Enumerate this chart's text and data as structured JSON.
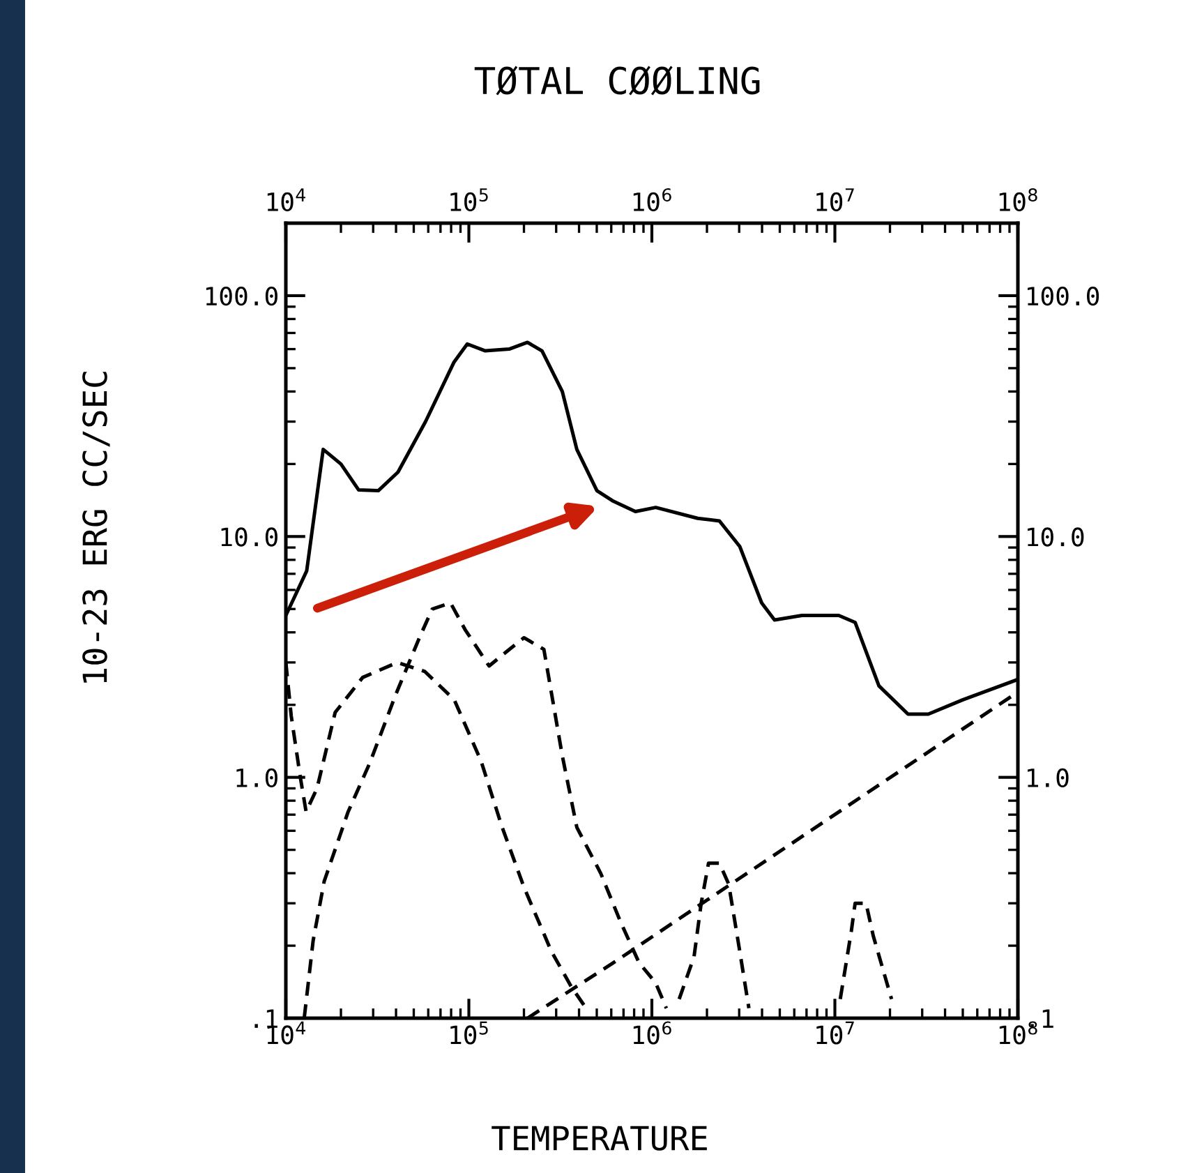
{
  "chart_data": {
    "type": "line",
    "title": "TØTAL CØØLING",
    "xlabel": "TEMPERATURE",
    "ylabel": "10-23 ERG CC/SEC",
    "log": "xy",
    "grid": false,
    "legend": false,
    "marker": "none",
    "xlim": [
      10000,
      100000000
    ],
    "ylim": [
      0.1,
      200
    ],
    "xticks": [
      {
        "value": 10000,
        "label": "10$^{4}$"
      },
      {
        "value": 100000,
        "label": "10$^{5}$"
      },
      {
        "value": 1000000,
        "label": "10$^{6}$"
      },
      {
        "value": 10000000,
        "label": "10$^{7}$"
      },
      {
        "value": 100000000,
        "label": "10$^{8}$"
      }
    ],
    "yticks": [
      {
        "value": 0.1,
        "label": ".1"
      },
      {
        "value": 1,
        "label": "1.0"
      },
      {
        "value": 10,
        "label": "10.0"
      },
      {
        "value": 100,
        "label": "100.0"
      }
    ],
    "series": [
      {
        "color": "#000000",
        "line_style": "solid",
        "x": [
          10000,
          13000,
          16000,
          20000,
          25000,
          32000,
          41000,
          58000,
          83000,
          98000,
          123000,
          166000,
          209000,
          251000,
          324000,
          389000,
          501000,
          617000,
          813000,
          1050000,
          1780000,
          2340000,
          3020000,
          3980000,
          4680000,
          6610000,
          10500000,
          12900000,
          17400000,
          25100000,
          32400000,
          50100000,
          100000000
        ],
        "values": [
          4.7,
          7.2,
          23,
          20,
          15.6,
          15.5,
          18.5,
          30,
          53,
          63,
          59,
          60,
          64,
          59,
          40,
          23,
          15.5,
          14,
          12.7,
          13.2,
          11.9,
          11.6,
          9.1,
          5.3,
          4.5,
          4.7,
          4.7,
          4.4,
          2.4,
          1.83,
          1.83,
          2.1,
          2.55
        ]
      },
      {
        "color": "#000000",
        "line_style": "dashed",
        "x": [
          12600,
          14100,
          16200,
          21900,
          28800,
          39800,
          53700,
          63100,
          79400,
          95500,
          129000,
          151000,
          200000,
          257000,
          324000,
          389000,
          525000,
          676000,
          851000,
          1050000,
          1200000
        ],
        "values": [
          0.1,
          0.21,
          0.37,
          0.72,
          1.15,
          2.2,
          3.8,
          5.0,
          5.3,
          4.1,
          2.9,
          3.2,
          3.8,
          3.4,
          1.23,
          0.62,
          0.4,
          0.25,
          0.17,
          0.14,
          0.11
        ]
      },
      {
        "color": "#000000",
        "line_style": "dashed",
        "x": [
          10000,
          10700,
          12000,
          12900,
          14800,
          18600,
          26300,
          40700,
          57500,
          83200,
          117000,
          151000,
          200000,
          282000,
          363000,
          437000
        ],
        "values": [
          3.0,
          1.8,
          1.0,
          0.72,
          0.9,
          1.86,
          2.6,
          3.0,
          2.75,
          2.1,
          1.16,
          0.63,
          0.35,
          0.19,
          0.135,
          0.11
        ]
      },
      {
        "color": "#000000",
        "line_style": "dashed",
        "x": [
          1410000,
          1700000,
          1860000,
          2040000,
          2340000,
          2630000,
          3020000,
          3390000
        ],
        "values": [
          0.12,
          0.18,
          0.3,
          0.44,
          0.44,
          0.36,
          0.19,
          0.11
        ]
      },
      {
        "color": "#000000",
        "line_style": "dashed",
        "x": [
          10700000,
          12300000,
          12900000,
          14800000,
          16200000,
          20400000
        ],
        "values": [
          0.12,
          0.23,
          0.3,
          0.3,
          0.22,
          0.12
        ]
      },
      {
        "color": "#000000",
        "line_style": "dashed",
        "x": [
          209000,
          617000,
          100000000
        ],
        "values": [
          0.1,
          0.17,
          2.26
        ]
      }
    ]
  }
}
